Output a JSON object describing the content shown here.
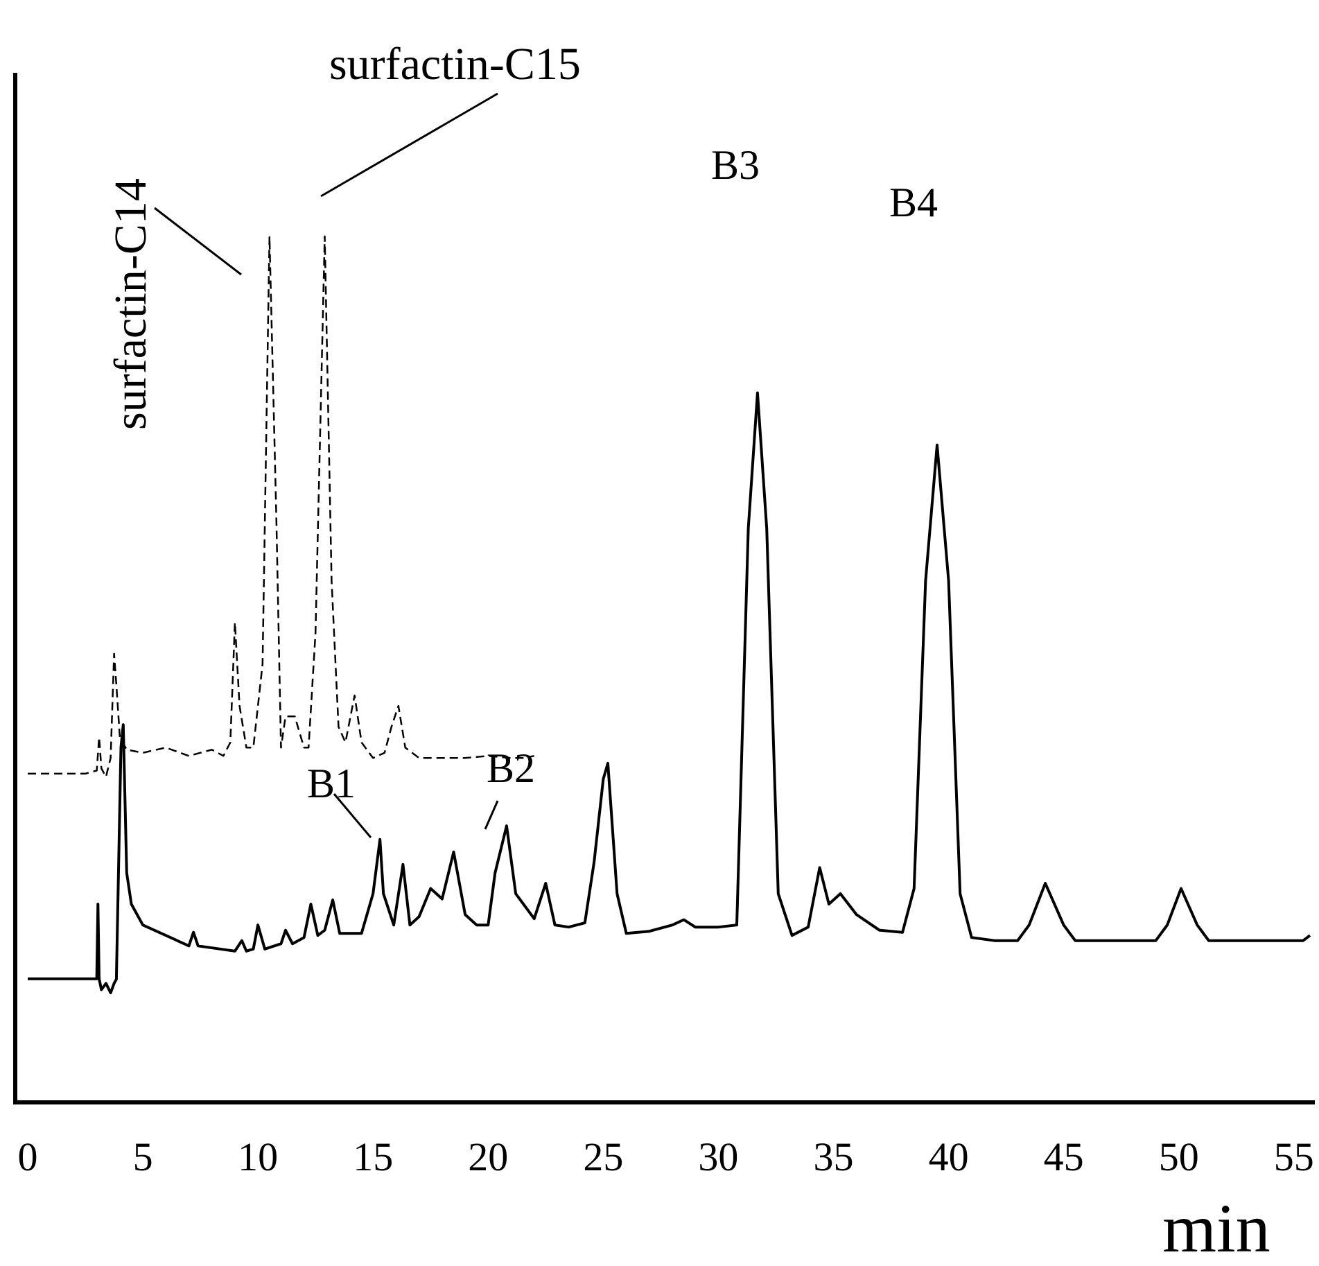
{
  "chart_data": {
    "type": "line",
    "title": "",
    "xlabel": "min",
    "ylabel": "",
    "xlim": [
      0,
      56
    ],
    "ylim": [
      0,
      1
    ],
    "x_ticks": [
      0,
      5,
      10,
      15,
      20,
      25,
      30,
      35,
      40,
      45,
      50,
      55
    ],
    "grid": false,
    "legend": "none",
    "series": [
      {
        "line_style": "solid",
        "color": "#000000",
        "points": [
          [
            0,
            0.1185
          ],
          [
            3.0,
            0.1185
          ],
          [
            3.05,
            0.19
          ],
          [
            3.1,
            0.1185
          ],
          [
            3.2,
            0.108
          ],
          [
            3.4,
            0.114
          ],
          [
            3.6,
            0.105
          ],
          [
            3.75,
            0.114
          ],
          [
            3.85,
            0.118
          ],
          [
            4.05,
            0.34
          ],
          [
            4.15,
            0.362
          ],
          [
            4.3,
            0.22
          ],
          [
            4.5,
            0.19
          ],
          [
            5.0,
            0.17
          ],
          [
            6.0,
            0.16
          ],
          [
            7.0,
            0.15
          ],
          [
            7.2,
            0.163
          ],
          [
            7.4,
            0.15
          ],
          [
            9.0,
            0.145
          ],
          [
            9.3,
            0.155
          ],
          [
            9.5,
            0.145
          ],
          [
            9.8,
            0.147
          ],
          [
            10.0,
            0.17
          ],
          [
            10.3,
            0.147
          ],
          [
            11.0,
            0.152
          ],
          [
            11.2,
            0.165
          ],
          [
            11.5,
            0.152
          ],
          [
            12.0,
            0.158
          ],
          [
            12.3,
            0.19
          ],
          [
            12.6,
            0.16
          ],
          [
            12.9,
            0.165
          ],
          [
            13.25,
            0.194
          ],
          [
            13.55,
            0.162
          ],
          [
            14.5,
            0.162
          ],
          [
            15.0,
            0.2
          ],
          [
            15.3,
            0.252
          ],
          [
            15.45,
            0.2
          ],
          [
            15.9,
            0.17
          ],
          [
            16.3,
            0.228
          ],
          [
            16.6,
            0.17
          ],
          [
            17.0,
            0.178
          ],
          [
            17.5,
            0.205
          ],
          [
            18.0,
            0.195
          ],
          [
            18.5,
            0.24
          ],
          [
            19.0,
            0.18
          ],
          [
            19.5,
            0.17
          ],
          [
            20.0,
            0.17
          ],
          [
            20.3,
            0.22
          ],
          [
            20.8,
            0.265
          ],
          [
            21.2,
            0.2
          ],
          [
            22.0,
            0.176
          ],
          [
            22.5,
            0.21
          ],
          [
            22.9,
            0.17
          ],
          [
            23.5,
            0.168
          ],
          [
            24.2,
            0.172
          ],
          [
            24.6,
            0.23
          ],
          [
            25.0,
            0.31
          ],
          [
            25.2,
            0.325
          ],
          [
            25.6,
            0.2
          ],
          [
            26.0,
            0.162
          ],
          [
            27.0,
            0.164
          ],
          [
            28.0,
            0.17
          ],
          [
            28.5,
            0.175
          ],
          [
            29.0,
            0.168
          ],
          [
            30.0,
            0.168
          ],
          [
            30.8,
            0.17
          ],
          [
            31.3,
            0.55
          ],
          [
            31.7,
            0.68
          ],
          [
            32.1,
            0.55
          ],
          [
            32.6,
            0.2
          ],
          [
            33.2,
            0.16
          ],
          [
            33.9,
            0.168
          ],
          [
            34.4,
            0.225
          ],
          [
            34.8,
            0.19
          ],
          [
            35.3,
            0.2
          ],
          [
            36.0,
            0.18
          ],
          [
            37.0,
            0.165
          ],
          [
            38.0,
            0.163
          ],
          [
            38.5,
            0.205
          ],
          [
            39.0,
            0.5
          ],
          [
            39.5,
            0.63
          ],
          [
            40.0,
            0.5
          ],
          [
            40.5,
            0.2
          ],
          [
            41.0,
            0.158
          ],
          [
            42.0,
            0.155
          ],
          [
            43.0,
            0.155
          ],
          [
            43.5,
            0.17
          ],
          [
            44.2,
            0.21
          ],
          [
            45.0,
            0.17
          ],
          [
            45.5,
            0.155
          ],
          [
            46.0,
            0.155
          ],
          [
            47.0,
            0.155
          ],
          [
            48.0,
            0.155
          ],
          [
            49.0,
            0.155
          ],
          [
            49.5,
            0.17
          ],
          [
            50.1,
            0.205
          ],
          [
            50.8,
            0.17
          ],
          [
            51.3,
            0.155
          ],
          [
            53.0,
            0.155
          ],
          [
            54.0,
            0.155
          ],
          [
            55.0,
            0.155
          ],
          [
            55.4,
            0.155
          ],
          [
            55.7,
            0.16
          ]
        ]
      },
      {
        "line_style": "dashed",
        "color": "#000000",
        "points": [
          [
            0,
            0.315
          ],
          [
            2.5,
            0.315
          ],
          [
            3.0,
            0.318
          ],
          [
            3.1,
            0.35
          ],
          [
            3.2,
            0.32
          ],
          [
            3.4,
            0.312
          ],
          [
            3.6,
            0.33
          ],
          [
            3.75,
            0.43
          ],
          [
            3.85,
            0.4
          ],
          [
            4.0,
            0.35
          ],
          [
            4.3,
            0.338
          ],
          [
            5.0,
            0.335
          ],
          [
            6.0,
            0.34
          ],
          [
            7.0,
            0.332
          ],
          [
            8.0,
            0.338
          ],
          [
            8.5,
            0.332
          ],
          [
            8.8,
            0.345
          ],
          [
            9.0,
            0.46
          ],
          [
            9.2,
            0.38
          ],
          [
            9.5,
            0.34
          ],
          [
            9.8,
            0.34
          ],
          [
            10.2,
            0.42
          ],
          [
            10.5,
            0.83
          ],
          [
            10.8,
            0.56
          ],
          [
            11.0,
            0.34
          ],
          [
            11.2,
            0.37
          ],
          [
            11.6,
            0.37
          ],
          [
            12.0,
            0.34
          ],
          [
            12.2,
            0.34
          ],
          [
            12.5,
            0.45
          ],
          [
            12.9,
            0.83
          ],
          [
            13.2,
            0.5
          ],
          [
            13.5,
            0.36
          ],
          [
            13.8,
            0.345
          ],
          [
            14.2,
            0.39
          ],
          [
            14.5,
            0.345
          ],
          [
            15.0,
            0.33
          ],
          [
            15.5,
            0.335
          ],
          [
            15.8,
            0.36
          ],
          [
            16.1,
            0.38
          ],
          [
            16.4,
            0.34
          ],
          [
            17.0,
            0.33
          ],
          [
            18.0,
            0.33
          ],
          [
            19.0,
            0.33
          ],
          [
            20.0,
            0.332
          ],
          [
            21.0,
            0.33
          ],
          [
            21.5,
            0.33
          ],
          [
            22.0,
            0.332
          ]
        ]
      }
    ],
    "annotations": [
      {
        "text": "surfactin-C14",
        "x": 10.2,
        "y": 0.765,
        "rotation": -90
      },
      {
        "text": "surfactin-C15",
        "x": 13.2,
        "y": 0.73
      },
      {
        "text": "B1",
        "x": 15.3,
        "y": 0.252
      },
      {
        "text": "B2",
        "x": 20.8,
        "y": 0.265
      },
      {
        "text": "B3",
        "x": 31.7,
        "y": 0.68
      },
      {
        "text": "B4",
        "x": 39.5,
        "y": 0.63
      }
    ]
  }
}
